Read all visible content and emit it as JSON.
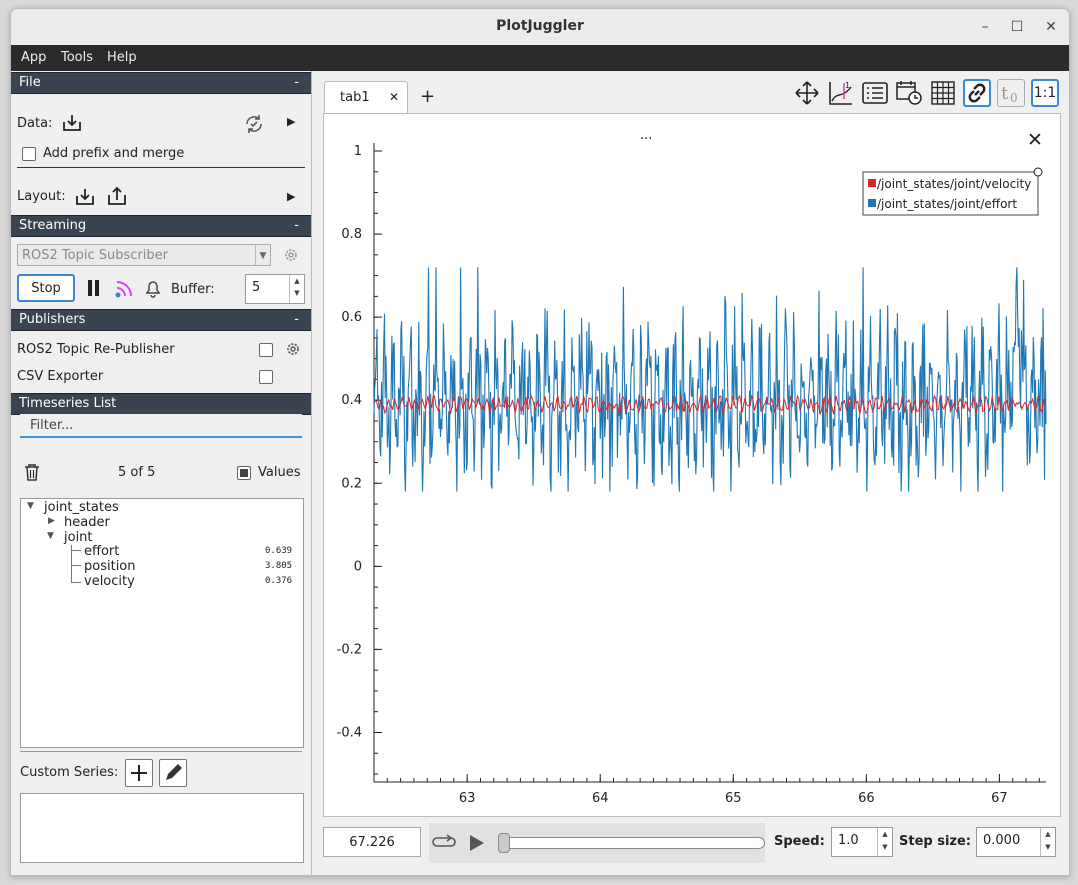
{
  "window": {
    "title": "PlotJuggler"
  },
  "menu": [
    "App",
    "Tools",
    "Help"
  ],
  "file_section": {
    "header": "File",
    "collapse": "-",
    "data_label": "Data:",
    "prefix_label": "Add prefix and merge",
    "layout_label": "Layout:"
  },
  "streaming": {
    "header": "Streaming",
    "collapse": "-",
    "source": "ROS2 Topic Subscriber",
    "stop_label": "Stop",
    "buffer_label": "Buffer:",
    "buffer_value": "5"
  },
  "publishers": {
    "header": "Publishers",
    "collapse": "-",
    "items": [
      {
        "label": "ROS2 Topic Re-Publisher"
      },
      {
        "label": "CSV Exporter"
      }
    ]
  },
  "timeseries": {
    "header": "Timeseries List",
    "filter_placeholder": "Filter...",
    "count": "5 of 5",
    "values_label": "Values",
    "tree": {
      "root": "joint_states",
      "header": "header",
      "joint": "joint",
      "leaves": [
        {
          "name": "effort",
          "value": "0.639"
        },
        {
          "name": "position",
          "value": "3.805"
        },
        {
          "name": "velocity",
          "value": "0.376"
        }
      ]
    },
    "custom_label": "Custom Series:"
  },
  "tabs": {
    "active": "tab1",
    "close": "✕",
    "add": "+"
  },
  "toolbar": {
    "zoom_ratio": "1:1"
  },
  "plot": {
    "title": "...",
    "close": "✕"
  },
  "player": {
    "time": "67.226",
    "speed_label": "Speed:",
    "speed_value": "1.0",
    "step_label": "Step size:",
    "step_value": "0.000",
    "progress": 0.0
  },
  "colors": {
    "velocity": "#d62728",
    "effort": "#1f77b4",
    "accent": "#3a86d8",
    "section": "#3a4450"
  },
  "chart_data": {
    "type": "line",
    "title": "...",
    "xlim": [
      62.3,
      67.35
    ],
    "ylim": [
      -0.5,
      1.0
    ],
    "xticks": [
      63,
      64,
      65,
      66,
      67
    ],
    "yticks": [
      1,
      0.8,
      0.6,
      0.4,
      0.2,
      0,
      -0.2,
      -0.4
    ],
    "legend_position": "top-right",
    "series": [
      {
        "name": "/joint_states/joint/velocity",
        "color": "#d62728",
        "mean": 0.39,
        "range": [
          0.36,
          0.41
        ]
      },
      {
        "name": "/joint_states/joint/effort",
        "color": "#1f77b4",
        "mean": 0.39,
        "range": [
          0.18,
          0.72
        ]
      }
    ]
  }
}
